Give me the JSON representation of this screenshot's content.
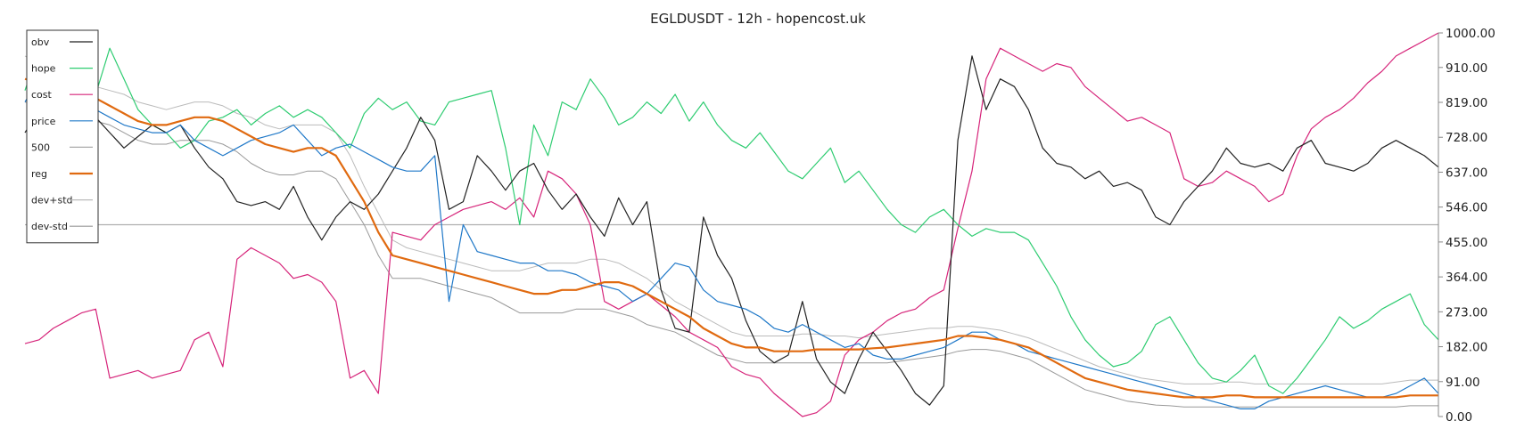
{
  "chart_data": {
    "type": "line",
    "title": "EGLDUSDT - 12h - hopencost.uk",
    "xlabel": "",
    "ylabel": "",
    "ylim": [
      0,
      1000
    ],
    "y_ticks": [
      "0.00",
      "91.00",
      "182.00",
      "273.00",
      "364.00",
      "455.00",
      "546.00",
      "637.00",
      "728.00",
      "819.00",
      "910.00",
      "1000.00"
    ],
    "y_tick_values": [
      0,
      91,
      182,
      273,
      364,
      455,
      546,
      637,
      728,
      819,
      910,
      1000
    ],
    "reference_line": 500,
    "grid": false,
    "legend_position": "top-left",
    "x": [
      0,
      1,
      2,
      3,
      4,
      5,
      6,
      7,
      8,
      9,
      10,
      11,
      12,
      13,
      14,
      15,
      16,
      17,
      18,
      19,
      20,
      21,
      22,
      23,
      24,
      25,
      26,
      27,
      28,
      29,
      30,
      31,
      32,
      33,
      34,
      35,
      36,
      37,
      38,
      39,
      40,
      41,
      42,
      43,
      44,
      45,
      46,
      47,
      48,
      49,
      50,
      51,
      52,
      53,
      54,
      55,
      56,
      57,
      58,
      59,
      60,
      61,
      62,
      63,
      64,
      65,
      66,
      67,
      68,
      69,
      70,
      71,
      72,
      73,
      74,
      75,
      76,
      77,
      78,
      79,
      80,
      81,
      82,
      83,
      84,
      85,
      86,
      87,
      88,
      89,
      90,
      91,
      92,
      93,
      94,
      95,
      96,
      97,
      98,
      99,
      100
    ],
    "series": [
      {
        "name": "obv",
        "color": "#222222",
        "width": 1.2,
        "values": [
          740,
          800,
          760,
          830,
          700,
          780,
          740,
          700,
          730,
          760,
          740,
          760,
          700,
          650,
          620,
          560,
          550,
          560,
          540,
          600,
          520,
          460,
          520,
          560,
          540,
          580,
          640,
          700,
          780,
          720,
          540,
          560,
          680,
          640,
          590,
          640,
          660,
          590,
          540,
          580,
          520,
          470,
          570,
          500,
          560,
          330,
          230,
          220,
          520,
          420,
          360,
          250,
          170,
          140,
          160,
          300,
          150,
          90,
          60,
          150,
          220,
          170,
          120,
          60,
          30,
          80,
          720,
          940,
          800,
          880,
          860,
          800,
          700,
          660,
          650,
          620,
          640,
          600,
          610,
          590,
          520,
          500,
          560,
          600,
          640,
          700,
          660,
          650,
          660,
          640,
          700,
          720,
          660,
          650,
          640,
          660,
          700,
          720,
          700,
          680,
          650
        ]
      },
      {
        "name": "hope",
        "color": "#2ecc71",
        "width": 1.2,
        "values": [
          850,
          960,
          900,
          920,
          910,
          840,
          960,
          880,
          800,
          760,
          740,
          700,
          720,
          770,
          780,
          800,
          760,
          790,
          810,
          780,
          800,
          780,
          740,
          700,
          790,
          830,
          800,
          820,
          770,
          760,
          820,
          830,
          840,
          850,
          700,
          500,
          760,
          680,
          820,
          800,
          880,
          830,
          760,
          780,
          820,
          790,
          840,
          770,
          820,
          760,
          720,
          700,
          740,
          690,
          640,
          620,
          660,
          700,
          610,
          640,
          590,
          540,
          500,
          480,
          520,
          540,
          500,
          470,
          490,
          480,
          480,
          460,
          400,
          340,
          260,
          200,
          160,
          130,
          140,
          170,
          240,
          260,
          200,
          140,
          100,
          90,
          120,
          160,
          80,
          60,
          100,
          150,
          200,
          260,
          230,
          250,
          280,
          300,
          320,
          240,
          200
        ]
      },
      {
        "name": "cost",
        "color": "#d6247a",
        "width": 1.2,
        "values": [
          190,
          200,
          230,
          250,
          270,
          280,
          100,
          110,
          120,
          100,
          110,
          120,
          200,
          220,
          130,
          410,
          440,
          420,
          400,
          360,
          370,
          350,
          300,
          100,
          120,
          60,
          480,
          470,
          460,
          500,
          520,
          540,
          550,
          560,
          540,
          570,
          520,
          640,
          620,
          580,
          500,
          300,
          280,
          300,
          320,
          290,
          260,
          220,
          200,
          180,
          130,
          110,
          100,
          60,
          30,
          0,
          10,
          40,
          160,
          200,
          220,
          250,
          270,
          280,
          310,
          330,
          490,
          640,
          880,
          960,
          940,
          920,
          900,
          920,
          910,
          860,
          830,
          800,
          770,
          780,
          760,
          740,
          620,
          600,
          610,
          640,
          620,
          600,
          560,
          580,
          680,
          750,
          780,
          800,
          830,
          870,
          900,
          940,
          960,
          980,
          1000
        ]
      },
      {
        "name": "price",
        "color": "#1f78c8",
        "width": 1.2,
        "values": [
          820,
          880,
          840,
          870,
          850,
          800,
          780,
          760,
          750,
          740,
          740,
          760,
          720,
          700,
          680,
          700,
          720,
          730,
          740,
          760,
          720,
          680,
          700,
          710,
          690,
          670,
          650,
          640,
          640,
          680,
          300,
          500,
          430,
          420,
          410,
          400,
          400,
          380,
          380,
          370,
          350,
          340,
          330,
          300,
          320,
          360,
          400,
          390,
          330,
          300,
          290,
          280,
          260,
          230,
          220,
          240,
          220,
          200,
          180,
          190,
          160,
          150,
          150,
          160,
          170,
          180,
          200,
          220,
          220,
          200,
          190,
          170,
          160,
          150,
          140,
          130,
          120,
          110,
          100,
          90,
          80,
          70,
          60,
          50,
          40,
          30,
          20,
          20,
          40,
          50,
          60,
          70,
          80,
          70,
          60,
          50,
          50,
          60,
          80,
          100,
          60
        ]
      },
      {
        "name": "500",
        "color": "#aaaaaa",
        "width": 1.0,
        "values": [
          500,
          500,
          500,
          500,
          500,
          500,
          500,
          500,
          500,
          500,
          500,
          500,
          500,
          500,
          500,
          500,
          500,
          500,
          500,
          500,
          500,
          500,
          500,
          500,
          500,
          500,
          500,
          500,
          500,
          500,
          500,
          500,
          500,
          500,
          500,
          500,
          500,
          500,
          500,
          500,
          500,
          500,
          500,
          500,
          500,
          500,
          500,
          500,
          500,
          500,
          500,
          500,
          500,
          500,
          500,
          500,
          500,
          500,
          500,
          500,
          500,
          500,
          500,
          500,
          500,
          500,
          500,
          500,
          500,
          500,
          500,
          500,
          500,
          500,
          500,
          500,
          500,
          500,
          500,
          500,
          500,
          500,
          500,
          500,
          500,
          500,
          500,
          500,
          500,
          500,
          500,
          500,
          500,
          500,
          500,
          500,
          500,
          500,
          500,
          500,
          500
        ]
      },
      {
        "name": "reg",
        "color": "#e06a10",
        "width": 2.2,
        "values": [
          880,
          870,
          860,
          850,
          840,
          830,
          810,
          790,
          770,
          760,
          760,
          770,
          780,
          780,
          770,
          750,
          730,
          710,
          700,
          690,
          700,
          700,
          680,
          620,
          560,
          480,
          420,
          410,
          400,
          390,
          380,
          370,
          360,
          350,
          340,
          330,
          320,
          320,
          330,
          330,
          340,
          350,
          350,
          340,
          320,
          300,
          280,
          260,
          230,
          210,
          190,
          180,
          180,
          170,
          170,
          170,
          175,
          175,
          175,
          175,
          178,
          180,
          185,
          190,
          195,
          200,
          210,
          210,
          205,
          200,
          190,
          180,
          160,
          140,
          120,
          100,
          90,
          80,
          70,
          65,
          60,
          55,
          50,
          50,
          50,
          55,
          55,
          50,
          50,
          50,
          50,
          50,
          50,
          50,
          50,
          50,
          50,
          50,
          55,
          55,
          55
        ]
      },
      {
        "name": "dev+std",
        "color": "#bbbbbb",
        "width": 1.0,
        "values": [
          940,
          920,
          900,
          890,
          880,
          860,
          850,
          840,
          820,
          810,
          800,
          810,
          820,
          820,
          810,
          790,
          780,
          760,
          750,
          760,
          760,
          760,
          740,
          680,
          600,
          530,
          460,
          440,
          430,
          420,
          410,
          400,
          390,
          380,
          380,
          380,
          390,
          400,
          400,
          400,
          410,
          410,
          400,
          380,
          360,
          330,
          300,
          280,
          260,
          240,
          220,
          210,
          210,
          210,
          210,
          215,
          215,
          210,
          210,
          205,
          210,
          215,
          220,
          225,
          230,
          230,
          235,
          235,
          230,
          225,
          215,
          205,
          190,
          175,
          160,
          145,
          130,
          120,
          110,
          100,
          95,
          90,
          85,
          85,
          85,
          90,
          90,
          85,
          85,
          85,
          85,
          85,
          85,
          85,
          85,
          85,
          85,
          90,
          95,
          95,
          95
        ]
      },
      {
        "name": "dev-std",
        "color": "#999999",
        "width": 1.0,
        "values": [
          820,
          810,
          800,
          790,
          780,
          770,
          760,
          740,
          720,
          710,
          710,
          720,
          720,
          720,
          710,
          690,
          660,
          640,
          630,
          630,
          640,
          640,
          620,
          560,
          500,
          420,
          360,
          360,
          360,
          350,
          340,
          330,
          320,
          310,
          290,
          270,
          270,
          270,
          270,
          280,
          280,
          280,
          270,
          260,
          240,
          230,
          220,
          200,
          180,
          160,
          150,
          140,
          140,
          140,
          140,
          140,
          140,
          140,
          140,
          140,
          140,
          140,
          145,
          150,
          155,
          160,
          170,
          175,
          175,
          170,
          160,
          150,
          130,
          110,
          90,
          70,
          60,
          50,
          40,
          35,
          30,
          28,
          25,
          25,
          25,
          25,
          25,
          25,
          25,
          25,
          25,
          25,
          25,
          25,
          25,
          25,
          25,
          25,
          28,
          28,
          28
        ]
      }
    ]
  }
}
